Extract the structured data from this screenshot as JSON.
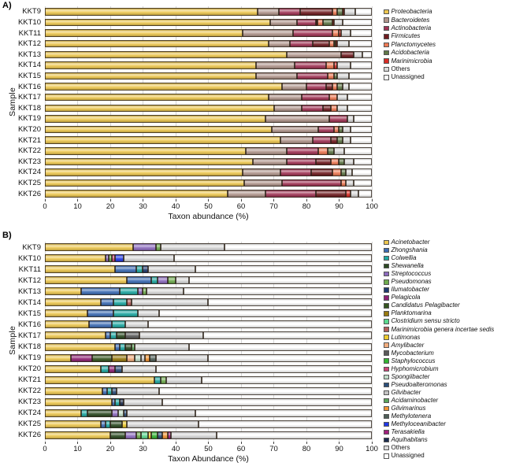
{
  "chart_data": [
    {
      "type": "bar",
      "orientation": "horizontal",
      "stacked": true,
      "panel_label": "A)",
      "title": "",
      "xlabel": "Taxon abundance (%)",
      "ylabel": "Sample",
      "xlim": [
        0,
        100
      ],
      "x_ticks": [
        0,
        10,
        20,
        30,
        40,
        50,
        60,
        70,
        80,
        90,
        100
      ],
      "grid": true,
      "legend_position": "right",
      "categories": [
        "KKT9",
        "KKT10",
        "KKT11",
        "KKT12",
        "KKT13",
        "KKT14",
        "KKT15",
        "KKT16",
        "KKT17",
        "KKT18",
        "KKT19",
        "KKT20",
        "KKT21",
        "KKT22",
        "KKT23",
        "KKT24",
        "KKT25",
        "KKT26"
      ],
      "series": [
        {
          "name": "Proteobacteria",
          "italic": true,
          "color": "#EDC74F",
          "values": [
            65,
            69,
            60.5,
            68.5,
            74,
            64.5,
            64.5,
            72.5,
            68.5,
            70,
            67.5,
            69.5,
            72,
            61.5,
            63.5,
            60.5,
            61,
            56
          ]
        },
        {
          "name": "Bacteroidetes",
          "italic": true,
          "color": "#B1968C",
          "values": [
            6.5,
            8,
            15.5,
            6.5,
            16.5,
            12,
            12.5,
            7.5,
            10,
            8.5,
            19.5,
            14,
            10,
            12.5,
            10.5,
            11.5,
            11.5,
            11.5
          ]
        },
        {
          "name": "Actinobacteria",
          "italic": true,
          "color": "#A13455",
          "values": [
            6.5,
            6,
            12,
            7,
            0,
            9.5,
            9.5,
            6,
            8.5,
            6.5,
            5.5,
            5,
            5.5,
            9.5,
            9,
            9.5,
            18,
            15.5
          ]
        },
        {
          "name": "Firmicutes",
          "italic": true,
          "color": "#701C20",
          "values": [
            10,
            0.5,
            0,
            5,
            4,
            0,
            0,
            2,
            0,
            2.5,
            0,
            0,
            2,
            0,
            4.5,
            6.5,
            0,
            9
          ]
        },
        {
          "name": "Planctomycetes",
          "italic": true,
          "color": "#EE7A54",
          "values": [
            1.5,
            1.5,
            2,
            1.5,
            0,
            2.5,
            2,
            1.5,
            2.5,
            2,
            0,
            1.5,
            0,
            3,
            2.5,
            2.5,
            1.5,
            0
          ]
        },
        {
          "name": "Acidobacteria",
          "italic": true,
          "color": "#5F7747",
          "values": [
            1.5,
            3,
            0,
            0.5,
            0,
            0,
            1,
            1.5,
            0,
            0,
            0,
            1,
            1.5,
            2,
            1.5,
            1.5,
            0,
            0
          ]
        },
        {
          "name": "Marinimicrobia",
          "italic": true,
          "color": "#D92B25",
          "values": [
            0.5,
            0.5,
            0.5,
            0.5,
            0,
            1,
            0,
            0,
            0,
            0,
            0,
            0,
            0,
            0,
            0,
            0,
            0,
            1.5
          ]
        },
        {
          "name": "Others",
          "italic": false,
          "color": "#D9D9D9",
          "values": [
            3.5,
            2.5,
            3,
            3.5,
            2.5,
            4,
            3.5,
            2,
            3,
            3,
            2,
            2.5,
            2.5,
            3,
            3,
            2,
            2.5,
            2.5
          ]
        },
        {
          "name": "Unassigned",
          "italic": false,
          "color": "#FFFFFF",
          "values": [
            5,
            9,
            6.5,
            7,
            3,
            6.5,
            7,
            7,
            7.5,
            7.5,
            5.5,
            6.5,
            6.5,
            8.5,
            5.5,
            6,
            5.5,
            4
          ]
        }
      ]
    },
    {
      "type": "bar",
      "orientation": "horizontal",
      "stacked": true,
      "panel_label": "B)",
      "title": "",
      "xlabel": "Taxon Abundance (%)",
      "ylabel": "Sample",
      "xlim": [
        0,
        100
      ],
      "x_ticks": [
        0,
        10,
        20,
        30,
        40,
        50,
        60,
        70,
        80,
        90,
        100
      ],
      "grid": true,
      "legend_position": "right",
      "categories": [
        "KKT9",
        "KKT10",
        "KKT11",
        "KKT12",
        "KKT13",
        "KKT14",
        "KKT15",
        "KKT16",
        "KKT17",
        "KKT18",
        "KKT19",
        "KKT20",
        "KKT21",
        "KKT22",
        "KKT23",
        "KKT24",
        "KKT25",
        "KKT26"
      ],
      "series": [
        {
          "name": "Acinetobacter",
          "italic": true,
          "color": "#EDC74F",
          "values": [
            27,
            18.5,
            21.5,
            25,
            11,
            17,
            13,
            13.5,
            18.5,
            21.5,
            8,
            17,
            33.5,
            17.5,
            20.5,
            11,
            17,
            20
          ]
        },
        {
          "name": "Zhongshania",
          "italic": true,
          "color": "#3C6CB4",
          "values": [
            0,
            0,
            6.5,
            7.5,
            12,
            4,
            8,
            7,
            1.5,
            1.5,
            0,
            0,
            0,
            1.5,
            1,
            0,
            1.5,
            0
          ]
        },
        {
          "name": "Colwellia",
          "italic": true,
          "color": "#1FA8A2",
          "values": [
            0,
            0,
            2,
            2,
            5.5,
            4,
            7.5,
            4,
            2,
            1.5,
            0,
            2.5,
            2,
            1.5,
            1.5,
            2,
            1.5,
            0
          ]
        },
        {
          "name": "Shewanella",
          "italic": true,
          "color": "#2C4A22",
          "values": [
            0,
            0,
            0,
            0,
            0,
            0,
            0,
            0,
            2.5,
            2,
            0,
            0,
            0,
            0,
            0,
            7.5,
            3.5,
            4.5
          ]
        },
        {
          "name": "Streptococcus",
          "italic": true,
          "color": "#8D6BBE",
          "values": [
            7,
            1,
            0,
            3,
            1.5,
            0,
            0,
            0,
            0,
            0,
            0,
            0,
            0,
            0,
            0,
            2,
            0,
            3.5
          ]
        },
        {
          "name": "Pseudomonas",
          "italic": true,
          "color": "#6FAC4E",
          "values": [
            1.5,
            1,
            0,
            2.5,
            1,
            0,
            0,
            0,
            0,
            0,
            0,
            0,
            1.5,
            0,
            0,
            0,
            0,
            1.5
          ]
        },
        {
          "name": "Ilumatobacter",
          "italic": true,
          "color": "#1F3A6E",
          "values": [
            0,
            0,
            1.5,
            0,
            0,
            0,
            0,
            0,
            0,
            0,
            0,
            0,
            0,
            0,
            0,
            0,
            0,
            0
          ]
        },
        {
          "name": "Pelagicola",
          "italic": true,
          "color": "#8E2173",
          "values": [
            0,
            0,
            0,
            0,
            0,
            0,
            0,
            0,
            0,
            0,
            6.5,
            2,
            0,
            0,
            0,
            0,
            0,
            0
          ]
        },
        {
          "name": "Candidatus Pelagibacter",
          "italic": true,
          "color": "#35551F",
          "values": [
            0,
            0,
            0,
            0,
            0,
            0,
            0,
            0,
            0,
            0,
            6,
            0,
            0,
            0,
            0,
            0,
            0,
            0
          ]
        },
        {
          "name": "Planktomarina",
          "italic": true,
          "color": "#97790E",
          "values": [
            0,
            0,
            0,
            0,
            0,
            0,
            0,
            0,
            0,
            0,
            4.5,
            0,
            0,
            0,
            0,
            0,
            0,
            0
          ]
        },
        {
          "name": "Clostridium sensu stricto",
          "italic": true,
          "color": "#5BD98F",
          "values": [
            0,
            0,
            0,
            0,
            0,
            0,
            0,
            0,
            0,
            0,
            0,
            0,
            0,
            0,
            0,
            0,
            0,
            2
          ]
        },
        {
          "name": "Marinimicrobia genera incertae sedis",
          "italic": true,
          "color": "#B25E5C",
          "values": [
            0,
            0,
            0,
            0,
            0,
            1.5,
            0,
            0,
            0,
            0,
            0,
            0,
            0,
            0,
            0,
            0,
            0,
            0
          ]
        },
        {
          "name": "Lutimonas",
          "italic": true,
          "color": "#EDCB2E",
          "values": [
            0,
            0,
            0,
            0,
            0,
            0,
            0,
            0,
            0,
            0,
            0,
            0,
            0,
            0,
            0,
            0,
            1.5,
            1
          ]
        },
        {
          "name": "Amylibacter",
          "italic": true,
          "color": "#F2AD7E",
          "values": [
            0,
            0,
            0,
            0,
            0,
            0,
            0,
            0,
            0,
            0,
            2.5,
            0,
            0,
            0,
            0,
            0,
            0,
            0
          ]
        },
        {
          "name": "Mycobacterium",
          "italic": true,
          "color": "#595959",
          "values": [
            0,
            0,
            0,
            0,
            0,
            0,
            0,
            0,
            4.5,
            0,
            0,
            0,
            0,
            0,
            0,
            0,
            0,
            0
          ]
        },
        {
          "name": "Staphylococcus",
          "italic": true,
          "color": "#33B533",
          "values": [
            0,
            0,
            0,
            0,
            0,
            0,
            0,
            0,
            0,
            0,
            0,
            0,
            0,
            0,
            0,
            0,
            0,
            2
          ]
        },
        {
          "name": "Hyphomicrobium",
          "italic": true,
          "color": "#CC4479",
          "values": [
            0,
            1,
            0,
            0,
            0,
            0,
            0,
            0,
            0,
            0,
            0,
            0,
            0,
            0,
            0,
            0,
            0,
            0
          ]
        },
        {
          "name": "Spongiibacter",
          "italic": true,
          "color": "#C0DCC8",
          "values": [
            0,
            0,
            0,
            0,
            0,
            0,
            0,
            0,
            0,
            0,
            2,
            0,
            0,
            0,
            0,
            1.5,
            0,
            0
          ]
        },
        {
          "name": "Pseudoalteromonas",
          "italic": true,
          "color": "#2A4E7A",
          "values": [
            0,
            0,
            0,
            0,
            0,
            0,
            0,
            0,
            0,
            0,
            0,
            2,
            0,
            1.5,
            0,
            1,
            0,
            1.5
          ]
        },
        {
          "name": "Gilvibacter",
          "italic": true,
          "color": "#C4C4C4",
          "values": [
            0,
            0,
            0,
            0,
            0,
            0,
            0,
            0,
            0,
            0,
            1,
            0,
            0,
            0,
            0,
            0,
            0,
            0
          ]
        },
        {
          "name": "Acidaminobacter",
          "italic": true,
          "color": "#5AA55A",
          "values": [
            0,
            0,
            0,
            0,
            0,
            0,
            0,
            0,
            0,
            1,
            0,
            0,
            0,
            0,
            0,
            0,
            0,
            0
          ]
        },
        {
          "name": "Gilvimarinus",
          "italic": true,
          "color": "#F29433",
          "values": [
            0,
            0,
            0,
            0,
            0,
            0,
            0,
            0,
            0,
            0,
            1.5,
            0,
            0,
            0,
            0,
            0,
            0,
            1.5
          ]
        },
        {
          "name": "Methylotenera",
          "italic": true,
          "color": "#4E5E57",
          "values": [
            0,
            0,
            0,
            0,
            0,
            0,
            0,
            0,
            0,
            0,
            2,
            0,
            0,
            0,
            0,
            0,
            0,
            0
          ]
        },
        {
          "name": "Methyloceanibacter",
          "italic": true,
          "color": "#2038E6",
          "values": [
            0,
            2.5,
            0,
            0,
            0,
            0,
            0,
            0,
            0,
            0,
            0,
            0,
            0,
            0,
            0,
            0,
            0,
            0
          ]
        },
        {
          "name": "Terasakiella",
          "italic": true,
          "color": "#A2207D",
          "values": [
            0,
            0,
            0,
            0,
            0,
            0,
            0,
            0,
            0,
            0,
            0,
            0,
            0,
            0,
            0,
            0,
            0,
            1
          ]
        },
        {
          "name": "Aquihabitans",
          "italic": true,
          "color": "#1C2D4E",
          "values": [
            0,
            0,
            0,
            0,
            0,
            0,
            0,
            0,
            0,
            0,
            0,
            0,
            0,
            0,
            1,
            0,
            0,
            0
          ]
        },
        {
          "name": "Others",
          "italic": false,
          "color": "#D9D9D9",
          "values": [
            19.5,
            15.5,
            14.5,
            4,
            11.5,
            23.5,
            6.5,
            7,
            19.5,
            16.5,
            16,
            10.5,
            11,
            13,
            12,
            21,
            22,
            14
          ]
        },
        {
          "name": "Unassigned",
          "italic": false,
          "color": "#FFFFFF",
          "values": [
            45,
            60.5,
            54,
            56,
            57.5,
            50,
            65,
            68.5,
            51.5,
            56,
            50,
            66,
            52,
            65,
            64,
            54,
            53,
            47.5
          ]
        }
      ]
    }
  ]
}
